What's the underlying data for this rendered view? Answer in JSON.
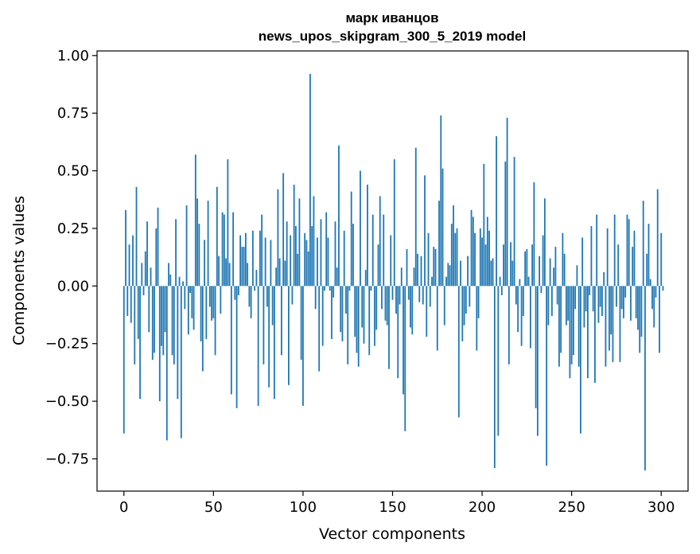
{
  "chart_data": {
    "type": "bar",
    "title_lines": [
      "марк иванцов",
      "news_upos_skipgram_300_5_2019 model"
    ],
    "xlabel": "Vector components",
    "ylabel": "Components values",
    "xlim": [
      -15,
      315
    ],
    "ylim": [
      -0.89,
      1.02
    ],
    "xticks": [
      0,
      50,
      100,
      150,
      200,
      250,
      300
    ],
    "xtick_labels": [
      "0",
      "50",
      "100",
      "150",
      "200",
      "250",
      "300"
    ],
    "yticks": [
      -0.75,
      -0.5,
      -0.25,
      0.0,
      0.25,
      0.5,
      0.75,
      1.0
    ],
    "ytick_labels": [
      "−0.75",
      "−0.50",
      "−0.25",
      "0.00",
      "0.25",
      "0.50",
      "0.75",
      "1.00"
    ],
    "grid": false,
    "bar_color": "#1f77b4",
    "x": "0..299 (one bar per vector component)",
    "values": [
      -0.64,
      0.33,
      -0.13,
      0.18,
      -0.16,
      0.22,
      -0.34,
      0.43,
      -0.23,
      -0.49,
      0.1,
      -0.04,
      0.15,
      0.28,
      -0.2,
      0.08,
      -0.32,
      -0.29,
      0.25,
      0.34,
      -0.5,
      -0.26,
      -0.3,
      -0.2,
      -0.67,
      0.1,
      0.05,
      -0.3,
      -0.34,
      0.29,
      -0.49,
      0.04,
      -0.66,
      0.02,
      -0.1,
      0.35,
      -0.21,
      -0.03,
      -0.14,
      -0.19,
      0.57,
      0.38,
      0.27,
      -0.24,
      -0.37,
      0.2,
      -0.23,
      0.37,
      -0.09,
      -0.15,
      -0.14,
      -0.3,
      0.43,
      0.13,
      -0.12,
      0.32,
      0.31,
      0.12,
      0.55,
      0.1,
      -0.47,
      0.32,
      -0.06,
      -0.53,
      -0.04,
      0.22,
      0.17,
      0.17,
      0.23,
      0.1,
      -0.09,
      -0.14,
      0.24,
      -0.02,
      0.07,
      -0.52,
      0.24,
      0.31,
      -0.34,
      0.21,
      -0.09,
      -0.44,
      0.2,
      -0.17,
      -0.49,
      0.08,
      0.42,
      0.12,
      -0.3,
      0.49,
      0.11,
      0.28,
      -0.43,
      0.22,
      -0.08,
      0.44,
      0.26,
      0.14,
      0.38,
      -0.32,
      -0.52,
      0.23,
      0.2,
      0.15,
      0.92,
      0.26,
      0.39,
      -0.1,
      0.21,
      -0.37,
      0.29,
      -0.26,
      -0.02,
      0.32,
      0.21,
      -0.02,
      -0.23,
      -0.05,
      0.28,
      0.08,
      0.61,
      -0.2,
      -0.24,
      0.24,
      -0.12,
      -0.34,
      -0.02,
      0.41,
      0.27,
      -0.22,
      -0.29,
      -0.35,
      0.5,
      -0.18,
      -0.25,
      0.07,
      0.44,
      -0.3,
      -0.02,
      0.31,
      -0.26,
      -0.19,
      0.18,
      0.39,
      -0.1,
      0.31,
      -0.15,
      -0.17,
      -0.36,
      0.22,
      -0.06,
      0.55,
      -0.12,
      -0.4,
      -0.08,
      0.08,
      -0.47,
      -0.63,
      0.16,
      -0.06,
      -0.18,
      -0.21,
      0.08,
      0.6,
      0.14,
      -0.07,
      0.13,
      -0.08,
      0.48,
      -0.22,
      0.23,
      -0.09,
      0.04,
      0.17,
      0.16,
      -0.28,
      0.37,
      0.74,
      0.51,
      -0.17,
      0.04,
      0.1,
      0.09,
      0.27,
      0.35,
      0.23,
      0.25,
      -0.57,
      0.11,
      -0.24,
      -0.17,
      -0.12,
      0.13,
      -0.09,
      0.33,
      0.3,
      0.23,
      -0.28,
      -0.14,
      0.25,
      0.21,
      0.53,
      0.18,
      0.3,
      0.24,
      0.11,
      0.12,
      -0.79,
      0.65,
      -0.65,
      0.04,
      -0.04,
      0.18,
      0.54,
      0.73,
      -0.34,
      0.19,
      0.11,
      0.56,
      -0.08,
      -0.2,
      0.03,
      -0.26,
      -0.13,
      0.15,
      0.16,
      0.04,
      -0.27,
      0.18,
      0.45,
      -0.53,
      -0.65,
      0.13,
      -0.03,
      0.22,
      0.38,
      -0.78,
      -0.17,
      0.12,
      -0.13,
      0.08,
      0.17,
      -0.08,
      -0.35,
      -0.29,
      0.23,
      0.14,
      -0.17,
      -0.15,
      -0.4,
      -0.34,
      -0.3,
      -0.1,
      0.09,
      -0.35,
      -0.64,
      0.21,
      -0.18,
      -0.11,
      -0.4,
      -0.04,
      0.26,
      -0.11,
      -0.42,
      0.31,
      -0.16,
      -0.09,
      -0.13,
      0.06,
      -0.35,
      0.25,
      -0.28,
      -0.21,
      -0.33,
      0.31,
      -0.09,
      0.18,
      -0.33,
      -0.1,
      -0.14,
      -0.05,
      0.31,
      0.29,
      -0.15,
      0.17,
      0.24,
      -0.14,
      -0.19,
      -0.29,
      -0.22,
      0.37,
      -0.8,
      0.14,
      0.27,
      0.03,
      -0.1,
      -0.18,
      -0.05,
      0.42,
      -0.29,
      0.23,
      -0.02
    ]
  }
}
